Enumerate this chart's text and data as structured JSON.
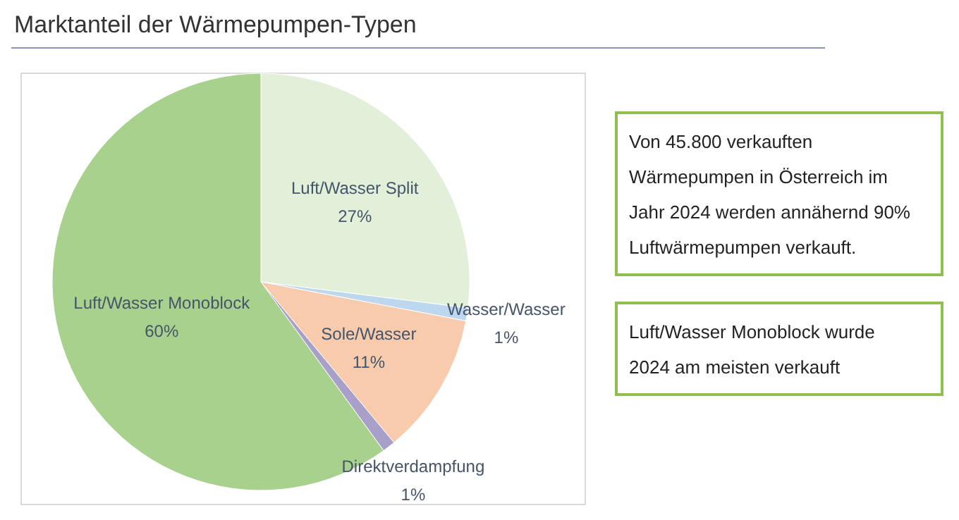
{
  "chart_data": {
    "type": "pie",
    "title": "Marktanteil der Wärmepumpen-Typen",
    "categories": [
      "Luft/Wasser Split",
      "Wasser/Wasser",
      "Sole/Wasser",
      "Direktverdampfung",
      "Luft/Wasser Monoblock"
    ],
    "values": [
      27,
      1,
      11,
      1,
      60
    ],
    "value_labels": [
      "27%",
      "1%",
      "11%",
      "1%",
      "60%"
    ],
    "colors": [
      "#e2efd9",
      "#bdd7ee",
      "#f8cbad",
      "#a9a0c9",
      "#a9d18e"
    ],
    "legend": false,
    "annotations": [
      "Von 45.800 verkauften Wärmepumpen in Österreich im Jahr 2024 werden annähernd 90% Luftwärmepumpen verkauft.",
      "Luft/Wasser Monoblock wurde 2024 am meisten verkauft"
    ]
  }
}
